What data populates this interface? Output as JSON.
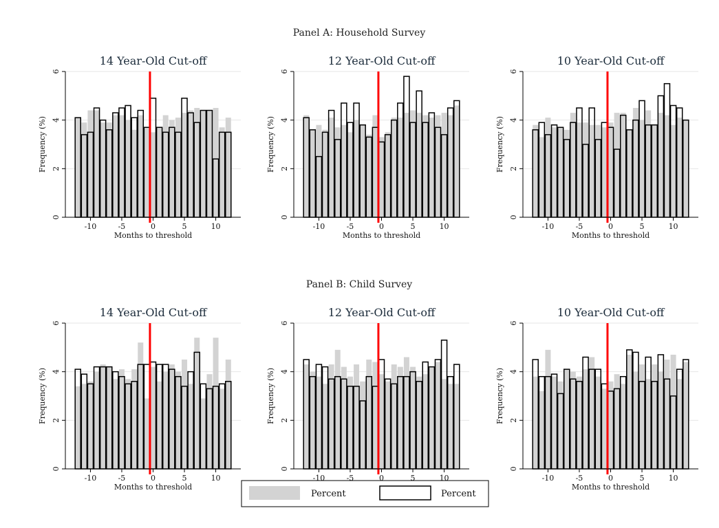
{
  "panels": [
    {
      "title": "Panel A: Household Survey"
    },
    {
      "title": "Panel B: Child Survey"
    }
  ],
  "legend": {
    "items": [
      {
        "label": "Percent",
        "style": "filled",
        "color": "#d3d3d3"
      },
      {
        "label": "Percent",
        "style": "outline",
        "color": "#000000"
      }
    ]
  },
  "colors": {
    "filled": "#d3d3d3",
    "outline": "#000000",
    "cutoff": "#ff0000"
  },
  "chart_data": [
    {
      "type": "bar",
      "panel": "Panel A: Household Survey",
      "title": "14 Year-Old Cut-off",
      "xlabel": "Months to threshold",
      "ylabel": "Frequency (%)",
      "xlim": [
        -14,
        14
      ],
      "ylim": [
        0,
        6
      ],
      "xticks": [
        -10,
        -5,
        0,
        5,
        10
      ],
      "yticks": [
        0,
        2,
        4,
        6
      ],
      "cutoff_x": -0.5,
      "x": [
        -12,
        -11,
        -10,
        -9,
        -8,
        -7,
        -6,
        -5,
        -4,
        -3,
        -2,
        -1,
        0,
        1,
        2,
        3,
        4,
        5,
        6,
        7,
        8,
        9,
        10,
        11,
        12
      ],
      "series": [
        {
          "style": "filled",
          "values": [
            4.1,
            3.9,
            4.4,
            4.4,
            3.9,
            3.9,
            4.2,
            4.2,
            4.0,
            3.6,
            4.2,
            3.7,
            3.5,
            3.7,
            4.2,
            4.0,
            4.1,
            4.3,
            4.4,
            4.5,
            4.4,
            4.4,
            4.5,
            3.7,
            4.1
          ]
        },
        {
          "style": "outline",
          "values": [
            4.1,
            3.4,
            3.5,
            4.5,
            4.0,
            3.6,
            4.3,
            4.5,
            4.6,
            4.1,
            4.4,
            3.7,
            4.9,
            3.7,
            3.5,
            3.7,
            3.5,
            4.9,
            4.3,
            3.9,
            4.4,
            4.4,
            2.4,
            3.5,
            3.5
          ]
        }
      ]
    },
    {
      "type": "bar",
      "panel": "Panel A: Household Survey",
      "title": "12 Year-Old Cut-off",
      "xlabel": "Months to threshold",
      "ylabel": "Frequency (%)",
      "xlim": [
        -14,
        14
      ],
      "ylim": [
        0,
        6
      ],
      "xticks": [
        -10,
        -5,
        0,
        5,
        10
      ],
      "yticks": [
        0,
        2,
        4,
        6
      ],
      "cutoff_x": -0.5,
      "x": [
        -12,
        -11,
        -10,
        -9,
        -8,
        -7,
        -6,
        -5,
        -4,
        -3,
        -2,
        -1,
        0,
        1,
        2,
        3,
        4,
        5,
        6,
        7,
        8,
        9,
        10,
        11,
        12
      ],
      "series": [
        {
          "style": "filled",
          "values": [
            4.2,
            3.6,
            3.8,
            3.6,
            4.1,
            3.7,
            3.8,
            3.5,
            4.0,
            3.8,
            3.4,
            4.2,
            3.3,
            3.5,
            4.1,
            4.1,
            4.3,
            4.4,
            4.3,
            4.2,
            4.1,
            4.2,
            4.3,
            4.2,
            4.6
          ]
        },
        {
          "style": "outline",
          "values": [
            4.1,
            3.6,
            2.5,
            3.5,
            4.4,
            3.2,
            4.7,
            3.9,
            4.7,
            3.8,
            3.3,
            3.7,
            3.1,
            3.4,
            4.0,
            4.7,
            5.8,
            3.9,
            5.2,
            3.9,
            4.3,
            3.7,
            3.4,
            4.5,
            4.8
          ]
        }
      ]
    },
    {
      "type": "bar",
      "panel": "Panel A: Household Survey",
      "title": "10 Year-Old Cut-off",
      "xlabel": "Months to threshold",
      "ylabel": "Frequency (%)",
      "xlim": [
        -14,
        14
      ],
      "ylim": [
        0,
        6
      ],
      "xticks": [
        -10,
        -5,
        0,
        5,
        10
      ],
      "yticks": [
        0,
        2,
        4,
        6
      ],
      "cutoff_x": -0.5,
      "x": [
        -12,
        -11,
        -10,
        -9,
        -8,
        -7,
        -6,
        -5,
        -4,
        -3,
        -2,
        -1,
        0,
        1,
        2,
        3,
        4,
        5,
        6,
        7,
        8,
        9,
        10,
        11,
        12
      ],
      "series": [
        {
          "style": "filled",
          "values": [
            3.8,
            3.3,
            4.1,
            3.7,
            3.7,
            3.6,
            4.3,
            3.9,
            3.9,
            3.8,
            3.8,
            3.7,
            3.9,
            4.3,
            4.3,
            3.6,
            4.5,
            4.0,
            4.4,
            3.8,
            4.3,
            4.2,
            3.8,
            4.1,
            4.0
          ]
        },
        {
          "style": "outline",
          "values": [
            3.6,
            3.9,
            3.4,
            3.8,
            3.7,
            3.2,
            3.9,
            4.5,
            3.0,
            4.5,
            3.2,
            3.9,
            3.7,
            2.8,
            4.2,
            3.6,
            4.0,
            4.8,
            3.8,
            3.8,
            5.0,
            5.5,
            4.6,
            4.5,
            4.0
          ]
        }
      ]
    },
    {
      "type": "bar",
      "panel": "Panel B: Child Survey",
      "title": "14 Year-Old Cut-off",
      "xlabel": "Months to threshold",
      "ylabel": "Frequency (%)",
      "xlim": [
        -14,
        14
      ],
      "ylim": [
        0,
        6
      ],
      "xticks": [
        -10,
        -5,
        0,
        5,
        10
      ],
      "yticks": [
        0,
        2,
        4,
        6
      ],
      "cutoff_x": -0.5,
      "x": [
        -12,
        -11,
        -10,
        -9,
        -8,
        -7,
        -6,
        -5,
        -4,
        -3,
        -2,
        -1,
        0,
        1,
        2,
        3,
        4,
        5,
        6,
        7,
        8,
        9,
        10,
        11,
        12
      ],
      "series": [
        {
          "style": "filled",
          "values": [
            3.4,
            3.5,
            3.6,
            4.0,
            4.3,
            4.2,
            3.7,
            4.1,
            3.7,
            4.1,
            5.2,
            2.9,
            4.2,
            3.6,
            4.0,
            4.3,
            4.0,
            4.5,
            3.5,
            5.4,
            2.9,
            3.9,
            5.4,
            3.3,
            4.5
          ]
        },
        {
          "style": "outline",
          "values": [
            4.1,
            3.9,
            3.5,
            4.2,
            4.2,
            4.2,
            4.0,
            3.8,
            3.5,
            3.6,
            4.3,
            4.3,
            4.4,
            4.3,
            4.3,
            4.1,
            3.8,
            3.4,
            4.0,
            4.8,
            3.5,
            3.3,
            3.4,
            3.5,
            3.6
          ]
        }
      ]
    },
    {
      "type": "bar",
      "panel": "Panel B: Child Survey",
      "title": "12 Year-Old Cut-off",
      "xlabel": "Months to threshold",
      "ylabel": "Frequency (%)",
      "xlim": [
        -14,
        14
      ],
      "ylim": [
        0,
        6
      ],
      "xticks": [
        -10,
        -5,
        0,
        5,
        10
      ],
      "yticks": [
        0,
        2,
        4,
        6
      ],
      "cutoff_x": -0.5,
      "x": [
        -12,
        -11,
        -10,
        -9,
        -8,
        -7,
        -6,
        -5,
        -4,
        -3,
        -2,
        -1,
        0,
        1,
        2,
        3,
        4,
        5,
        6,
        7,
        8,
        9,
        10,
        11,
        12
      ],
      "series": [
        {
          "style": "filled",
          "values": [
            4.3,
            4.0,
            3.8,
            3.5,
            4.3,
            4.9,
            4.2,
            3.8,
            4.3,
            3.6,
            4.5,
            4.4,
            3.9,
            3.6,
            4.3,
            4.2,
            4.6,
            4.2,
            3.8,
            3.9,
            4.2,
            4.4,
            3.7,
            3.5,
            3.5
          ]
        },
        {
          "style": "outline",
          "values": [
            4.5,
            3.8,
            4.3,
            4.2,
            3.7,
            3.8,
            3.7,
            3.4,
            3.4,
            2.8,
            3.8,
            3.4,
            4.5,
            3.7,
            3.5,
            3.8,
            3.8,
            4.0,
            3.6,
            4.4,
            4.2,
            4.5,
            5.3,
            3.8,
            4.3
          ]
        }
      ]
    },
    {
      "type": "bar",
      "panel": "Panel B: Child Survey",
      "title": "10 Year-Old Cut-off",
      "xlabel": "Months to threshold",
      "ylabel": "Frequency (%)",
      "xlim": [
        -14,
        14
      ],
      "ylim": [
        0,
        6
      ],
      "xticks": [
        -10,
        -5,
        0,
        5,
        10
      ],
      "yticks": [
        0,
        2,
        4,
        6
      ],
      "cutoff_x": -0.5,
      "x": [
        -12,
        -11,
        -10,
        -9,
        -8,
        -7,
        -6,
        -5,
        -4,
        -3,
        -2,
        -1,
        0,
        1,
        2,
        3,
        4,
        5,
        6,
        7,
        8,
        9,
        10,
        11,
        12
      ],
      "series": [
        {
          "style": "filled",
          "values": [
            3.8,
            3.2,
            4.9,
            3.8,
            3.6,
            4.1,
            4.0,
            3.8,
            4.1,
            4.6,
            3.8,
            3.3,
            3.6,
            3.9,
            3.5,
            4.7,
            4.0,
            4.3,
            3.7,
            4.3,
            4.0,
            4.5,
            4.7,
            3.7,
            4.4
          ]
        },
        {
          "style": "outline",
          "values": [
            4.5,
            3.8,
            3.8,
            3.9,
            3.1,
            4.1,
            3.7,
            3.6,
            4.6,
            4.1,
            4.1,
            3.5,
            3.2,
            3.3,
            3.8,
            4.9,
            4.8,
            3.6,
            4.6,
            3.6,
            4.7,
            3.7,
            3.0,
            4.1,
            4.5
          ]
        }
      ]
    }
  ]
}
